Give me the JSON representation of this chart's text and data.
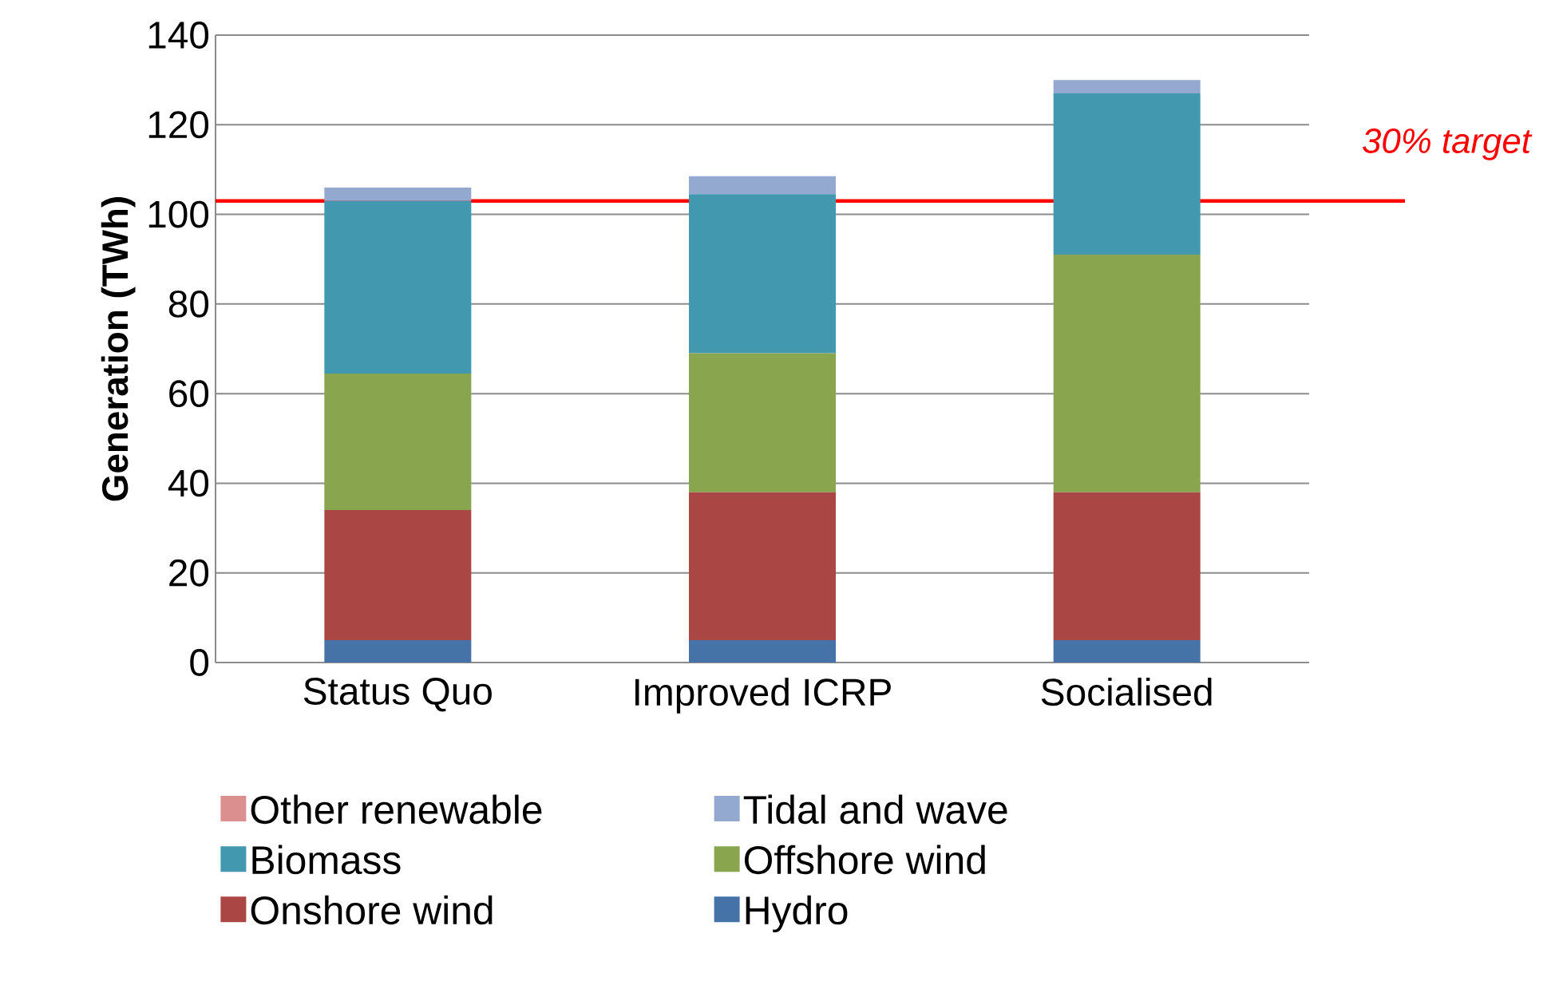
{
  "chart_data": {
    "type": "bar",
    "stacked": true,
    "ylabel": "Generation (TWh)",
    "categories": [
      "Status Quo",
      "Improved ICRP",
      "Socialised"
    ],
    "series": [
      {
        "name": "Hydro",
        "color": "#4572a7",
        "values": [
          5,
          5,
          5
        ]
      },
      {
        "name": "Onshore wind",
        "color": "#aa4643",
        "values": [
          29,
          33,
          33
        ]
      },
      {
        "name": "Offshore wind",
        "color": "#89a54e",
        "values": [
          30.5,
          31,
          53
        ]
      },
      {
        "name": "Biomass",
        "color": "#4198af",
        "values": [
          38.5,
          35.5,
          36
        ]
      },
      {
        "name": "Tidal and wave",
        "color": "#93a9cf",
        "values": [
          3,
          4,
          3
        ]
      },
      {
        "name": "Other renewable",
        "color": "#db8f8e",
        "values": [
          0,
          0,
          0
        ]
      }
    ],
    "ylim": [
      0,
      140
    ],
    "yticks": [
      0,
      20,
      40,
      60,
      80,
      100,
      120,
      140
    ],
    "grid": "y",
    "legend": "bottom",
    "ref_lines": [
      {
        "axis": "y",
        "value": 103,
        "label": "30% target",
        "color": "#ff0000"
      }
    ]
  }
}
